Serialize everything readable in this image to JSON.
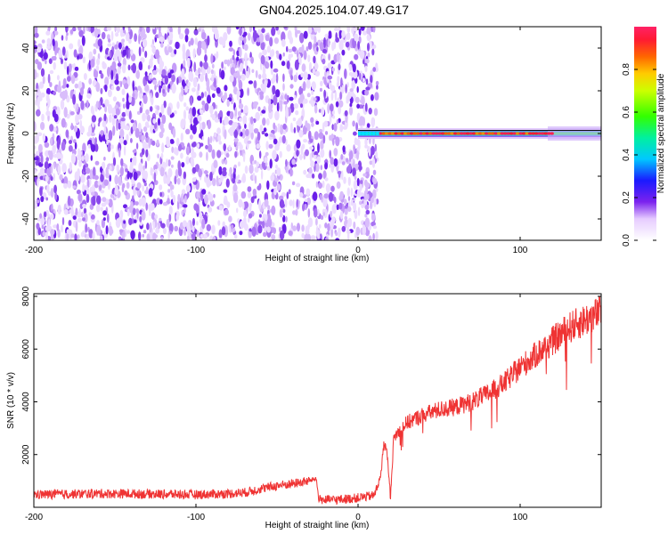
{
  "title": "GN04.2025.104.07.49.G17",
  "chart_data": [
    {
      "type": "heatmap",
      "xlabel": "Height of straight line (km)",
      "ylabel": "Frequency (Hz)",
      "xlim": [
        -200,
        150
      ],
      "ylim": [
        -50,
        50
      ],
      "xticks": [
        -200,
        -100,
        0,
        100
      ],
      "yticks": [
        -40,
        -20,
        0,
        20,
        40
      ],
      "noise_region_x": [
        -200,
        12
      ],
      "signal_band": {
        "x": [
          0,
          150
        ],
        "frequency": 0,
        "peak_amplitude": 0.95
      },
      "colorbar": {
        "label": "Normalized spectral amplitude",
        "range": [
          0.0,
          1.0
        ],
        "ticks": [
          0.0,
          0.2,
          0.4,
          0.6,
          0.8
        ]
      }
    },
    {
      "type": "line",
      "xlabel": "Height of straight line (km)",
      "ylabel": "SNR (10 * v/v)",
      "xlim": [
        -200,
        150
      ],
      "ylim": [
        0,
        8100
      ],
      "xticks": [
        -200,
        -100,
        0,
        100
      ],
      "yticks": [
        2000,
        4000,
        6000,
        8000
      ],
      "color": "#ef3333",
      "series": [
        {
          "x": [
            -200,
            -180,
            -160,
            -140,
            -120,
            -100,
            -80,
            -70,
            -60,
            -50,
            -40,
            -30,
            -26,
            -24,
            -20,
            -10,
            0,
            10,
            14,
            16,
            18,
            20,
            22,
            24,
            30,
            40,
            50,
            60,
            70,
            80,
            90,
            100,
            110,
            120,
            130,
            140,
            150
          ],
          "y": [
            480,
            500,
            520,
            510,
            500,
            480,
            520,
            560,
            700,
            820,
            900,
            1000,
            1100,
            300,
            280,
            300,
            360,
            450,
            1200,
            2500,
            2000,
            400,
            2600,
            2800,
            3200,
            3500,
            3700,
            3800,
            4000,
            4300,
            4700,
            5300,
            5800,
            6300,
            6800,
            7100,
            7400
          ]
        }
      ]
    }
  ]
}
